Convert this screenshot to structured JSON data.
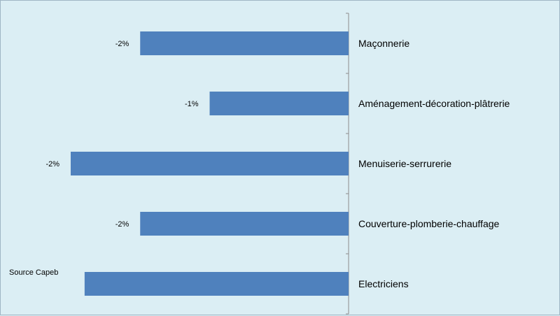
{
  "chart_data": {
    "type": "bar",
    "orientation": "horizontal",
    "categories": [
      "Maçonnerie",
      "Aménagement-décoration-plâtrerie",
      "Menuiserie-serrurerie",
      "Couverture-plomberie-chauffage",
      "Electriciens"
    ],
    "values": [
      -1.5,
      -1.0,
      -2.0,
      -1.5,
      -1.9
    ],
    "value_labels": [
      "-2%",
      "-1%",
      "-2%",
      "-2%",
      ""
    ],
    "xlim": [
      -2.0,
      0
    ],
    "title": "",
    "xlabel": "",
    "ylabel": "",
    "grid": false,
    "legend": "none",
    "bar_color": "#4f81bd",
    "axis_color": "#8c8c8c"
  },
  "source_note": "Source Capeb"
}
